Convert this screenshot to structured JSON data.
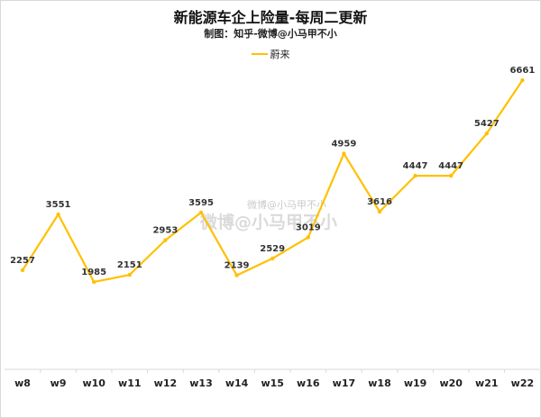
{
  "chart_data": {
    "type": "line",
    "title": "新能源车企上险量-每周二更新",
    "subtitle": "制图：知乎-微博@小马甲不小",
    "categories": [
      "w8",
      "w9",
      "w10",
      "w11",
      "w12",
      "w13",
      "w14",
      "w15",
      "w16",
      "w17",
      "w18",
      "w19",
      "w20",
      "w21",
      "w22"
    ],
    "series": [
      {
        "name": "蔚来",
        "color": "#FFC000",
        "values": [
          2257,
          3551,
          1985,
          2151,
          2953,
          3595,
          2139,
          2529,
          3019,
          4959,
          3616,
          4447,
          4447,
          5427,
          6661
        ]
      }
    ],
    "ylim": [
      0,
      8000
    ],
    "grid": false,
    "legend": "top",
    "data_labels": true
  },
  "watermark": "微博@小马甲不小"
}
